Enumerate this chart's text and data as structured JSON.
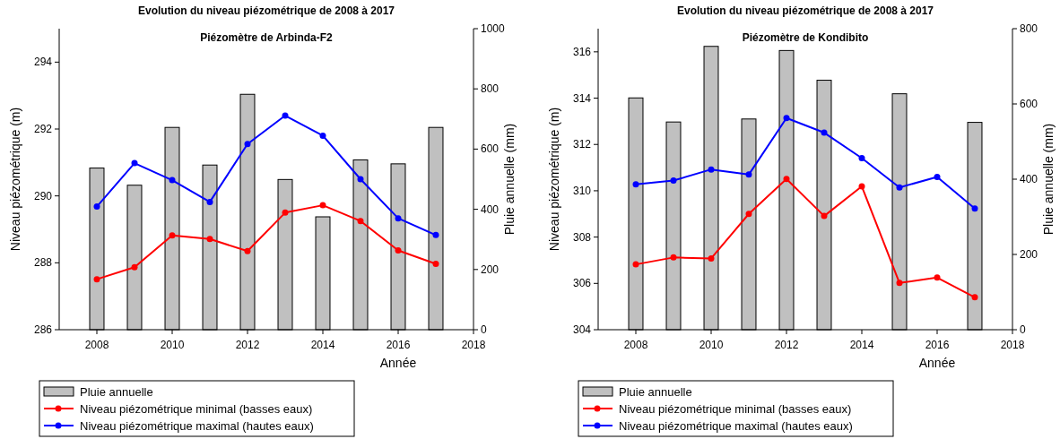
{
  "chart_data": [
    {
      "type": "bar",
      "title": "Evolution du niveau piézométrique de 2008 à 2017",
      "subtitle": "Piézomètre de Arbinda-F2",
      "xlabel": "Année",
      "ylabel": "Niveau piézométrique (m)",
      "y2label": "Pluie annuelle (mm)",
      "x": [
        2008,
        2009,
        2010,
        2011,
        2012,
        2013,
        2014,
        2015,
        2016,
        2017
      ],
      "xlim": [
        2007,
        2018
      ],
      "xticks": [
        2008,
        2010,
        2012,
        2014,
        2016,
        2018
      ],
      "ylim": [
        286,
        295
      ],
      "yticks": [
        286,
        288,
        290,
        292,
        294
      ],
      "y2lim": [
        0,
        1000
      ],
      "y2ticks": [
        0,
        200,
        400,
        600,
        800,
        1000
      ],
      "legend": "bottom left",
      "marker": "circle",
      "series": [
        {
          "axis": "y2",
          "name": "Pluie annuelle",
          "color": "#c0c0c0",
          "values": [
            537,
            480,
            672,
            547,
            782,
            499,
            375,
            564,
            551,
            672
          ]
        },
        {
          "type": "line",
          "axis": "y",
          "name": "Niveau piézométrique minimal (basses eaux)",
          "color": "#ff0000",
          "values": [
            287.51,
            287.87,
            288.82,
            288.71,
            288.35,
            289.5,
            289.72,
            289.25,
            288.37,
            287.97
          ]
        },
        {
          "type": "line",
          "axis": "y",
          "name": "Niveau piézométrique maximal (hautes eaux)",
          "color": "#0000ff",
          "values": [
            289.68,
            290.98,
            290.47,
            289.82,
            291.55,
            292.4,
            291.8,
            290.5,
            289.33,
            288.83
          ]
        }
      ]
    },
    {
      "type": "bar",
      "title": "Evolution du niveau piézométrique de 2008 à 2017",
      "subtitle": "Piézomètre de Kondibito",
      "xlabel": "Année",
      "ylabel": "Niveau piézométrique (m)",
      "y2label": "Pluie annuelle (mm)",
      "x": [
        2008,
        2009,
        2010,
        2011,
        2012,
        2013,
        2014,
        2015,
        2016,
        2017
      ],
      "xlim": [
        2007,
        2018
      ],
      "xticks": [
        2008,
        2010,
        2012,
        2014,
        2016,
        2018
      ],
      "ylim": [
        304,
        317
      ],
      "yticks": [
        304,
        306,
        308,
        310,
        312,
        314,
        316
      ],
      "y2lim": [
        0,
        800
      ],
      "y2ticks": [
        0,
        200,
        400,
        600,
        800
      ],
      "legend": "bottom left",
      "marker": "circle",
      "series": [
        {
          "axis": "y2",
          "name": "Pluie annuelle",
          "color": "#c0c0c0",
          "values": [
            616,
            552,
            753,
            560,
            742,
            663,
            null,
            627,
            null,
            551
          ]
        },
        {
          "type": "line",
          "axis": "y",
          "name": "Niveau piézométrique minimal (basses eaux)",
          "color": "#ff0000",
          "values": [
            306.82,
            307.12,
            307.08,
            309.0,
            310.51,
            308.91,
            310.19,
            306.02,
            306.25,
            305.4
          ]
        },
        {
          "type": "line",
          "axis": "y",
          "name": "Niveau piézométrique maximal (hautes eaux)",
          "color": "#0000ff",
          "values": [
            310.28,
            310.44,
            310.92,
            310.7,
            313.14,
            312.51,
            311.41,
            310.14,
            310.6,
            309.23
          ]
        }
      ]
    }
  ]
}
